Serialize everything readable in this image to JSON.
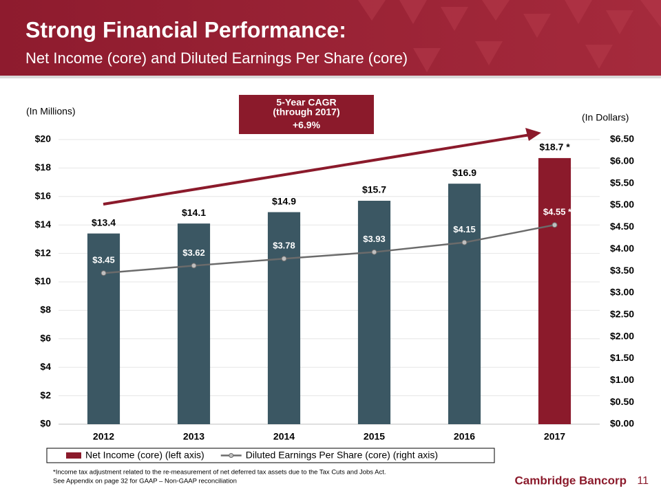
{
  "chart_data": {
    "type": "bar",
    "title": "Strong Financial Performance:",
    "subtitle": "Net Income (core) and Diluted Earnings Per Share (core)",
    "ylabel": "(In Millions)",
    "y2label": "(In Dollars)",
    "annotation": {
      "title": "5-Year CAGR",
      "period": "(through 2017)",
      "value": "+6.9%"
    },
    "categories": [
      "2012",
      "2013",
      "2014",
      "2015",
      "2016",
      "2017"
    ],
    "series": [
      {
        "name": "Net Income (core) (left axis)",
        "type": "bar",
        "color": "#8b1a2b",
        "bar_colors": [
          "#3b5763",
          "#3b5763",
          "#3b5763",
          "#3b5763",
          "#3b5763",
          "#8b1a2b"
        ],
        "values": [
          13.4,
          14.1,
          14.9,
          15.7,
          16.9,
          18.7
        ],
        "value_labels": [
          "$13.4",
          "$14.1",
          "$14.9",
          "$15.7",
          "$16.9",
          "$18.7 *"
        ]
      },
      {
        "name": "Diluted Earnings Per Share (core) (right axis)",
        "type": "line",
        "axis": "y2",
        "color": "#6b6b6b",
        "values": [
          3.45,
          3.62,
          3.78,
          3.93,
          4.15,
          4.55
        ],
        "value_labels": [
          "$3.45",
          "$3.62",
          "$3.78",
          "$3.93",
          "$4.15",
          "$4.55 *"
        ]
      }
    ],
    "ylim": [
      0,
      20
    ],
    "yticks": [
      {
        "value": 0,
        "label": "$0"
      },
      {
        "value": 2,
        "label": "$2"
      },
      {
        "value": 4,
        "label": "$4"
      },
      {
        "value": 6,
        "label": "$6"
      },
      {
        "value": 8,
        "label": "$8"
      },
      {
        "value": 10,
        "label": "$10"
      },
      {
        "value": 12,
        "label": "$12"
      },
      {
        "value": 14,
        "label": "$14"
      },
      {
        "value": 16,
        "label": "$16"
      },
      {
        "value": 18,
        "label": "$18"
      },
      {
        "value": 20,
        "label": "$20"
      }
    ],
    "y2lim": [
      0,
      6.5
    ],
    "y2ticks": [
      {
        "value": 0,
        "label": "$0.00"
      },
      {
        "value": 0.5,
        "label": "$0.50"
      },
      {
        "value": 1,
        "label": "$1.00"
      },
      {
        "value": 1.5,
        "label": "$1.50"
      },
      {
        "value": 2,
        "label": "$2.00"
      },
      {
        "value": 2.5,
        "label": "$2.50"
      },
      {
        "value": 3,
        "label": "$3.00"
      },
      {
        "value": 3.5,
        "label": "$3.50"
      },
      {
        "value": 4,
        "label": "$4.00"
      },
      {
        "value": 4.5,
        "label": "$4.50"
      },
      {
        "value": 5,
        "label": "$5.00"
      },
      {
        "value": 5.5,
        "label": "$5.50"
      },
      {
        "value": 6,
        "label": "$6.00"
      },
      {
        "value": 6.5,
        "label": "$6.50"
      }
    ],
    "grid": true
  },
  "footer": {
    "notes": [
      "*Income tax adjustment related to the re-measurement of net deferred tax assets due to the Tax Cuts and Jobs Act.",
      "See Appendix on page 32 for GAAP – Non-GAAP reconciliation"
    ],
    "logo": "Cambridge Bancorp",
    "page": "11"
  }
}
